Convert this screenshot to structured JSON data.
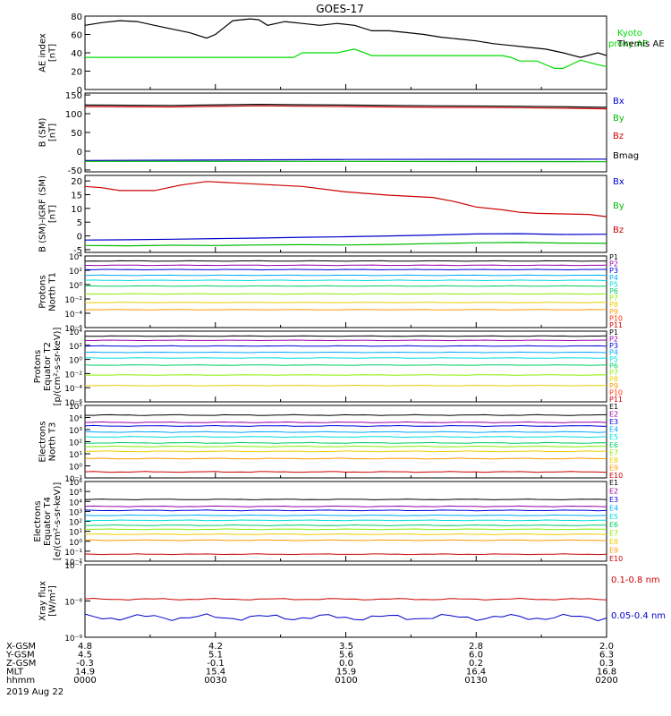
{
  "title": "GOES-17",
  "footer": {
    "date": "2019 Aug 22",
    "row_labels": [
      "X-GSM",
      "Y-GSM",
      "Z-GSM",
      "MLT",
      "hhmm"
    ],
    "columns": [
      {
        "X-GSM": "4.8",
        "Y-GSM": "4.5",
        "Z-GSM": "-0.3",
        "MLT": "14.9",
        "hhmm": "0000"
      },
      {
        "X-GSM": "4.2",
        "Y-GSM": "5.1",
        "Z-GSM": "-0.1",
        "MLT": "15.4",
        "hhmm": "0030"
      },
      {
        "X-GSM": "3.5",
        "Y-GSM": "5.6",
        "Z-GSM": "0.0",
        "MLT": "15.9",
        "hhmm": "0100"
      },
      {
        "X-GSM": "2.8",
        "Y-GSM": "6.0",
        "Z-GSM": "0.2",
        "MLT": "16.4",
        "hhmm": "0130"
      },
      {
        "X-GSM": "2.0",
        "Y-GSM": "6.3",
        "Z-GSM": "0.3",
        "MLT": "16.8",
        "hhmm": "0200"
      }
    ]
  },
  "chart_data": [
    {
      "type": "line",
      "id": "ae",
      "title": "GOES-17",
      "ylabel": [
        "AE index",
        "[nT]"
      ],
      "ylim": [
        0,
        80
      ],
      "log": false,
      "yticks": [
        0,
        20,
        40,
        60,
        80
      ],
      "x_range_minutes": [
        0,
        120
      ],
      "series": [
        {
          "name": "Kyoto proxy AE",
          "color": "#00dd00",
          "x": [
            0,
            48,
            50,
            58,
            62,
            66,
            96,
            98,
            100,
            104,
            108,
            110,
            114,
            118,
            120
          ],
          "y": [
            35,
            35,
            40,
            40,
            44,
            37,
            37,
            35,
            31,
            31,
            23,
            23,
            32,
            27,
            25
          ]
        },
        {
          "name": "Themis AE",
          "color": "#000000",
          "x": [
            0,
            4,
            8,
            12,
            16,
            20,
            24,
            28,
            30,
            34,
            38,
            40,
            42,
            46,
            50,
            54,
            58,
            62,
            66,
            70,
            74,
            78,
            82,
            86,
            90,
            94,
            98,
            102,
            106,
            110,
            114,
            118,
            120
          ],
          "y": [
            70,
            73,
            75,
            74,
            70,
            66,
            62,
            56,
            60,
            75,
            77,
            76,
            70,
            74,
            72,
            70,
            72,
            70,
            64,
            64,
            62,
            60,
            57,
            55,
            53,
            50,
            48,
            46,
            44,
            40,
            35,
            40,
            37
          ]
        }
      ]
    },
    {
      "type": "line",
      "id": "bsm",
      "ylabel": [
        "B (SM)",
        "[nT]"
      ],
      "ylim": [
        -55,
        155
      ],
      "log": false,
      "yticks": [
        -50,
        0,
        50,
        100,
        150
      ],
      "series": [
        {
          "name": "Bx",
          "color": "#0000cc",
          "x": [
            0,
            60,
            120
          ],
          "y": [
            -25,
            -22,
            -21
          ]
        },
        {
          "name": "By",
          "color": "#00bb00",
          "x": [
            0,
            60,
            120
          ],
          "y": [
            -27,
            -27,
            -28
          ]
        },
        {
          "name": "Bz",
          "color": "#cc0000",
          "x": [
            0,
            20,
            40,
            60,
            80,
            100,
            120
          ],
          "y": [
            119,
            118,
            121,
            119,
            117,
            116,
            113
          ]
        },
        {
          "name": "Bmag",
          "color": "#000000",
          "x": [
            0,
            20,
            40,
            60,
            80,
            100,
            120
          ],
          "y": [
            123,
            122,
            125,
            123,
            121,
            120,
            117
          ]
        }
      ]
    },
    {
      "type": "line",
      "id": "bdiff",
      "ylabel": [
        "B (SM)-IGRF (SM)",
        "[nT]"
      ],
      "ylim": [
        -6,
        22
      ],
      "log": false,
      "yticks": [
        -5,
        0,
        5,
        10,
        15,
        20
      ],
      "series": [
        {
          "name": "Bx",
          "color": "#0000cc",
          "x": [
            0,
            10,
            20,
            30,
            40,
            50,
            60,
            70,
            80,
            90,
            100,
            110,
            120
          ],
          "y": [
            -1.5,
            -1.4,
            -1.2,
            -1,
            -0.8,
            -0.5,
            -0.3,
            0,
            0.3,
            0.7,
            0.8,
            0.5,
            0.6
          ]
        },
        {
          "name": "By",
          "color": "#00bb00",
          "x": [
            0,
            10,
            20,
            30,
            40,
            50,
            60,
            70,
            80,
            90,
            100,
            110,
            120
          ],
          "y": [
            -3.5,
            -3.6,
            -3.4,
            -3.5,
            -3.3,
            -3.2,
            -3.3,
            -3.1,
            -2.8,
            -2.5,
            -2.4,
            -2.6,
            -2.7
          ]
        },
        {
          "name": "Bz",
          "color": "#cc0000",
          "x": [
            0,
            4,
            8,
            16,
            22,
            28,
            34,
            40,
            50,
            60,
            70,
            80,
            85,
            90,
            96,
            100,
            104,
            110,
            116,
            120
          ],
          "y": [
            18,
            17.5,
            16.5,
            16.5,
            18.5,
            19.8,
            19.3,
            18.8,
            18,
            16,
            14.8,
            14,
            12.5,
            10.5,
            9.5,
            8.6,
            8.2,
            8,
            7.8,
            7
          ]
        }
      ]
    },
    {
      "type": "line",
      "id": "pn",
      "ylabel": [
        "Protons",
        "North T1"
      ],
      "log": true,
      "ylim_exp": [
        -6,
        4
      ],
      "ytick_labels": [
        "10⁻⁶",
        "10⁻⁴",
        "10⁻²",
        "10⁰",
        "10²",
        "10⁴"
      ],
      "series": [
        {
          "name": "P1",
          "color": "#000000",
          "log10": 3.3
        },
        {
          "name": "P2",
          "color": "#9900aa",
          "log10": 2.7
        },
        {
          "name": "P3",
          "color": "#0000dd",
          "log10": 2.1
        },
        {
          "name": "P4",
          "color": "#00aaff",
          "log10": 1.3
        },
        {
          "name": "P5",
          "color": "#00dddd",
          "log10": 0.6
        },
        {
          "name": "P6",
          "color": "#00cc66",
          "log10": -0.2
        },
        {
          "name": "P7",
          "color": "#88ee00",
          "log10": -1.3
        },
        {
          "name": "P8",
          "color": "#eecc00",
          "log10": -2.5
        },
        {
          "name": "P9",
          "color": "#ff9900",
          "log10": -3.5
        },
        {
          "name": "P10",
          "color": "#ff3300",
          "log10": null
        },
        {
          "name": "P11",
          "color": "#cc0000",
          "log10": null
        }
      ]
    },
    {
      "type": "line",
      "id": "pe",
      "ylabel": [
        "Protons",
        "Equator T2",
        "[p/(cm²-s-sr-keV)]"
      ],
      "log": true,
      "ylim_exp": [
        -6,
        4
      ],
      "ytick_labels": [
        "10⁻⁶",
        "10⁻⁴",
        "10⁻²",
        "10⁰",
        "10²",
        "10⁴"
      ],
      "series": [
        {
          "name": "P1",
          "color": "#000000",
          "log10": 3.3
        },
        {
          "name": "P2",
          "color": "#9900aa",
          "log10": 2.7
        },
        {
          "name": "P3",
          "color": "#0000dd",
          "log10": 1.9
        },
        {
          "name": "P4",
          "color": "#00aaff",
          "log10": 1.0
        },
        {
          "name": "P5",
          "color": "#00dddd",
          "log10": 0.2
        },
        {
          "name": "P6",
          "color": "#00cc66",
          "log10": -0.8
        },
        {
          "name": "P7",
          "color": "#88ee00",
          "log10": -2.2
        },
        {
          "name": "P8",
          "color": "#eecc00",
          "log10": -3.7
        },
        {
          "name": "P9",
          "color": "#ff9900",
          "log10": null
        },
        {
          "name": "P10",
          "color": "#ff3300",
          "log10": null
        },
        {
          "name": "P11",
          "color": "#cc0000",
          "log10": null
        }
      ]
    },
    {
      "type": "line",
      "id": "en",
      "ylabel": [
        "Electrons",
        "North T3"
      ],
      "log": true,
      "ylim_exp": [
        -1,
        5
      ],
      "ytick_labels": [
        "10⁻¹",
        "10⁰",
        "10¹",
        "10²",
        "10³",
        "10⁴",
        "10⁵"
      ],
      "series": [
        {
          "name": "E1",
          "color": "#000000",
          "log10": 4.2
        },
        {
          "name": "E2",
          "color": "#9900aa",
          "log10": 3.6
        },
        {
          "name": "E3",
          "color": "#0000dd",
          "log10": 3.3
        },
        {
          "name": "E4",
          "color": "#00aaff",
          "log10": 2.8
        },
        {
          "name": "E5",
          "color": "#00dddd",
          "log10": 2.4
        },
        {
          "name": "E6",
          "color": "#00cc66",
          "log10": 1.9
        },
        {
          "name": "E7",
          "color": "#88ee00",
          "log10": 1.6
        },
        {
          "name": "E8",
          "color": "#eecc00",
          "log10": 1.2
        },
        {
          "name": "E9",
          "color": "#ff9900",
          "log10": 0.6
        },
        {
          "name": "E10",
          "color": "#cc0000",
          "log10": -0.5
        }
      ]
    },
    {
      "type": "line",
      "id": "ee",
      "ylabel": [
        "Electrons",
        "Equator T4",
        "[e/(cm²-s-sr-keV)]"
      ],
      "log": true,
      "ylim_exp": [
        -2,
        6
      ],
      "ytick_labels": [
        "10⁻²",
        "10⁻¹",
        "10⁰",
        "10¹",
        "10²",
        "10³",
        "10⁴",
        "10⁵",
        "10⁶"
      ],
      "series": [
        {
          "name": "E1",
          "color": "#000000",
          "log10": 4.2
        },
        {
          "name": "E2",
          "color": "#9900aa",
          "log10": 3.5
        },
        {
          "name": "E3",
          "color": "#0000dd",
          "log10": 3.1
        },
        {
          "name": "E4",
          "color": "#00aaff",
          "log10": 2.6
        },
        {
          "name": "E5",
          "color": "#00dddd",
          "log10": 2.1
        },
        {
          "name": "E6",
          "color": "#00cc66",
          "log10": 1.6
        },
        {
          "name": "E7",
          "color": "#88ee00",
          "log10": 1.2
        },
        {
          "name": "E8",
          "color": "#eecc00",
          "log10": 0.7
        },
        {
          "name": "E9",
          "color": "#ff9900",
          "log10": 0.1
        },
        {
          "name": "E10",
          "color": "#cc0000",
          "log10": -1.3
        }
      ]
    },
    {
      "type": "line",
      "id": "xray",
      "ylabel": [
        "Xray flux",
        "[W/m²]"
      ],
      "log": true,
      "ylim_exp": [
        -9,
        -7
      ],
      "ytick_labels": [
        "10⁻⁹",
        "10⁻⁸",
        "10⁻⁷"
      ],
      "series": [
        {
          "name": "0.1-0.8 nm",
          "color": "#cc0000",
          "log10": -7.95
        },
        {
          "name": "0.05-0.4 nm",
          "color": "#0000cc",
          "log10": -8.45
        }
      ]
    }
  ]
}
